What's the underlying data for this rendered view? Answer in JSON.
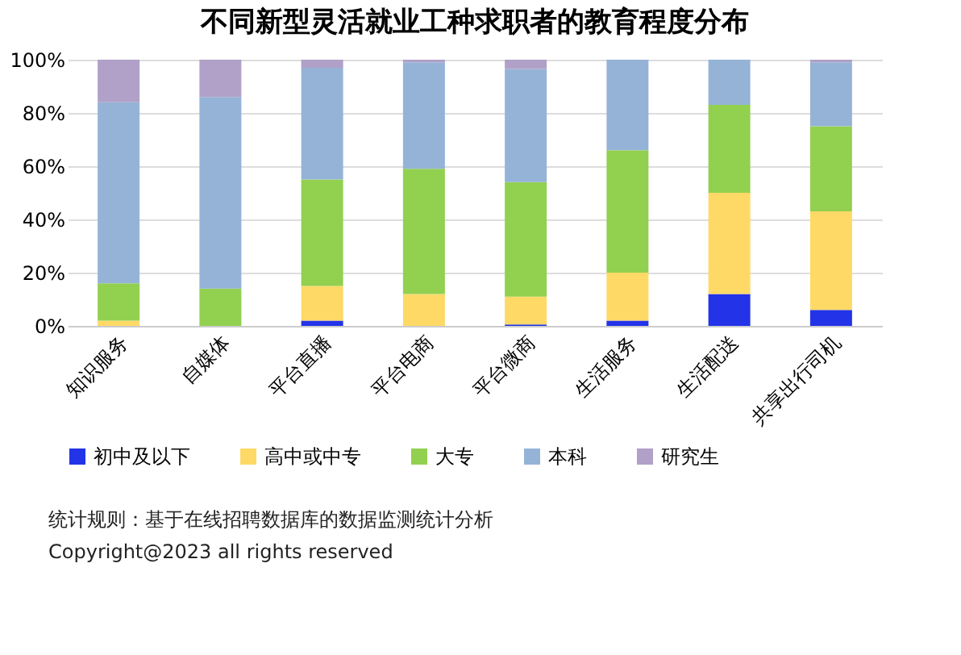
{
  "chart_data": {
    "type": "bar",
    "title": "不同新型灵活就业工种求职者的教育程度分布",
    "stacked": true,
    "categories": [
      "知识服务",
      "自媒体",
      "平台直播",
      "平台电商",
      "平台微商",
      "生活服务",
      "生活配送",
      "共享出行司机"
    ],
    "series": [
      {
        "name": "初中及以下",
        "color": "#2233e8",
        "values": [
          0,
          0,
          2,
          0,
          0.5,
          2,
          12,
          6
        ]
      },
      {
        "name": "高中或中专",
        "color": "#ffd966",
        "values": [
          2,
          0,
          13,
          12,
          10.5,
          18,
          38,
          37
        ]
      },
      {
        "name": "大专",
        "color": "#92d050",
        "values": [
          14,
          14,
          40,
          47,
          43,
          46,
          33,
          32
        ]
      },
      {
        "name": "本科",
        "color": "#95b3d7",
        "values": [
          68,
          72,
          42,
          40,
          42.5,
          34,
          17,
          24
        ]
      },
      {
        "name": "研究生",
        "color": "#b1a0c7",
        "values": [
          16,
          14,
          3,
          1,
          3.5,
          0,
          0,
          1
        ]
      }
    ],
    "ylim": [
      0,
      100
    ],
    "yticks": [
      {
        "value": 0,
        "label": "0%"
      },
      {
        "value": 20,
        "label": "20%"
      },
      {
        "value": 40,
        "label": "40%"
      },
      {
        "value": 60,
        "label": "60%"
      },
      {
        "value": 80,
        "label": "80%"
      },
      {
        "value": 100,
        "label": "100%"
      }
    ],
    "grid": "y",
    "legend": "bottom",
    "annotations": [
      "统计规则：基于在线招聘数据库的数据监测统计分析",
      "Copyright@2023 all rights reserved"
    ]
  }
}
